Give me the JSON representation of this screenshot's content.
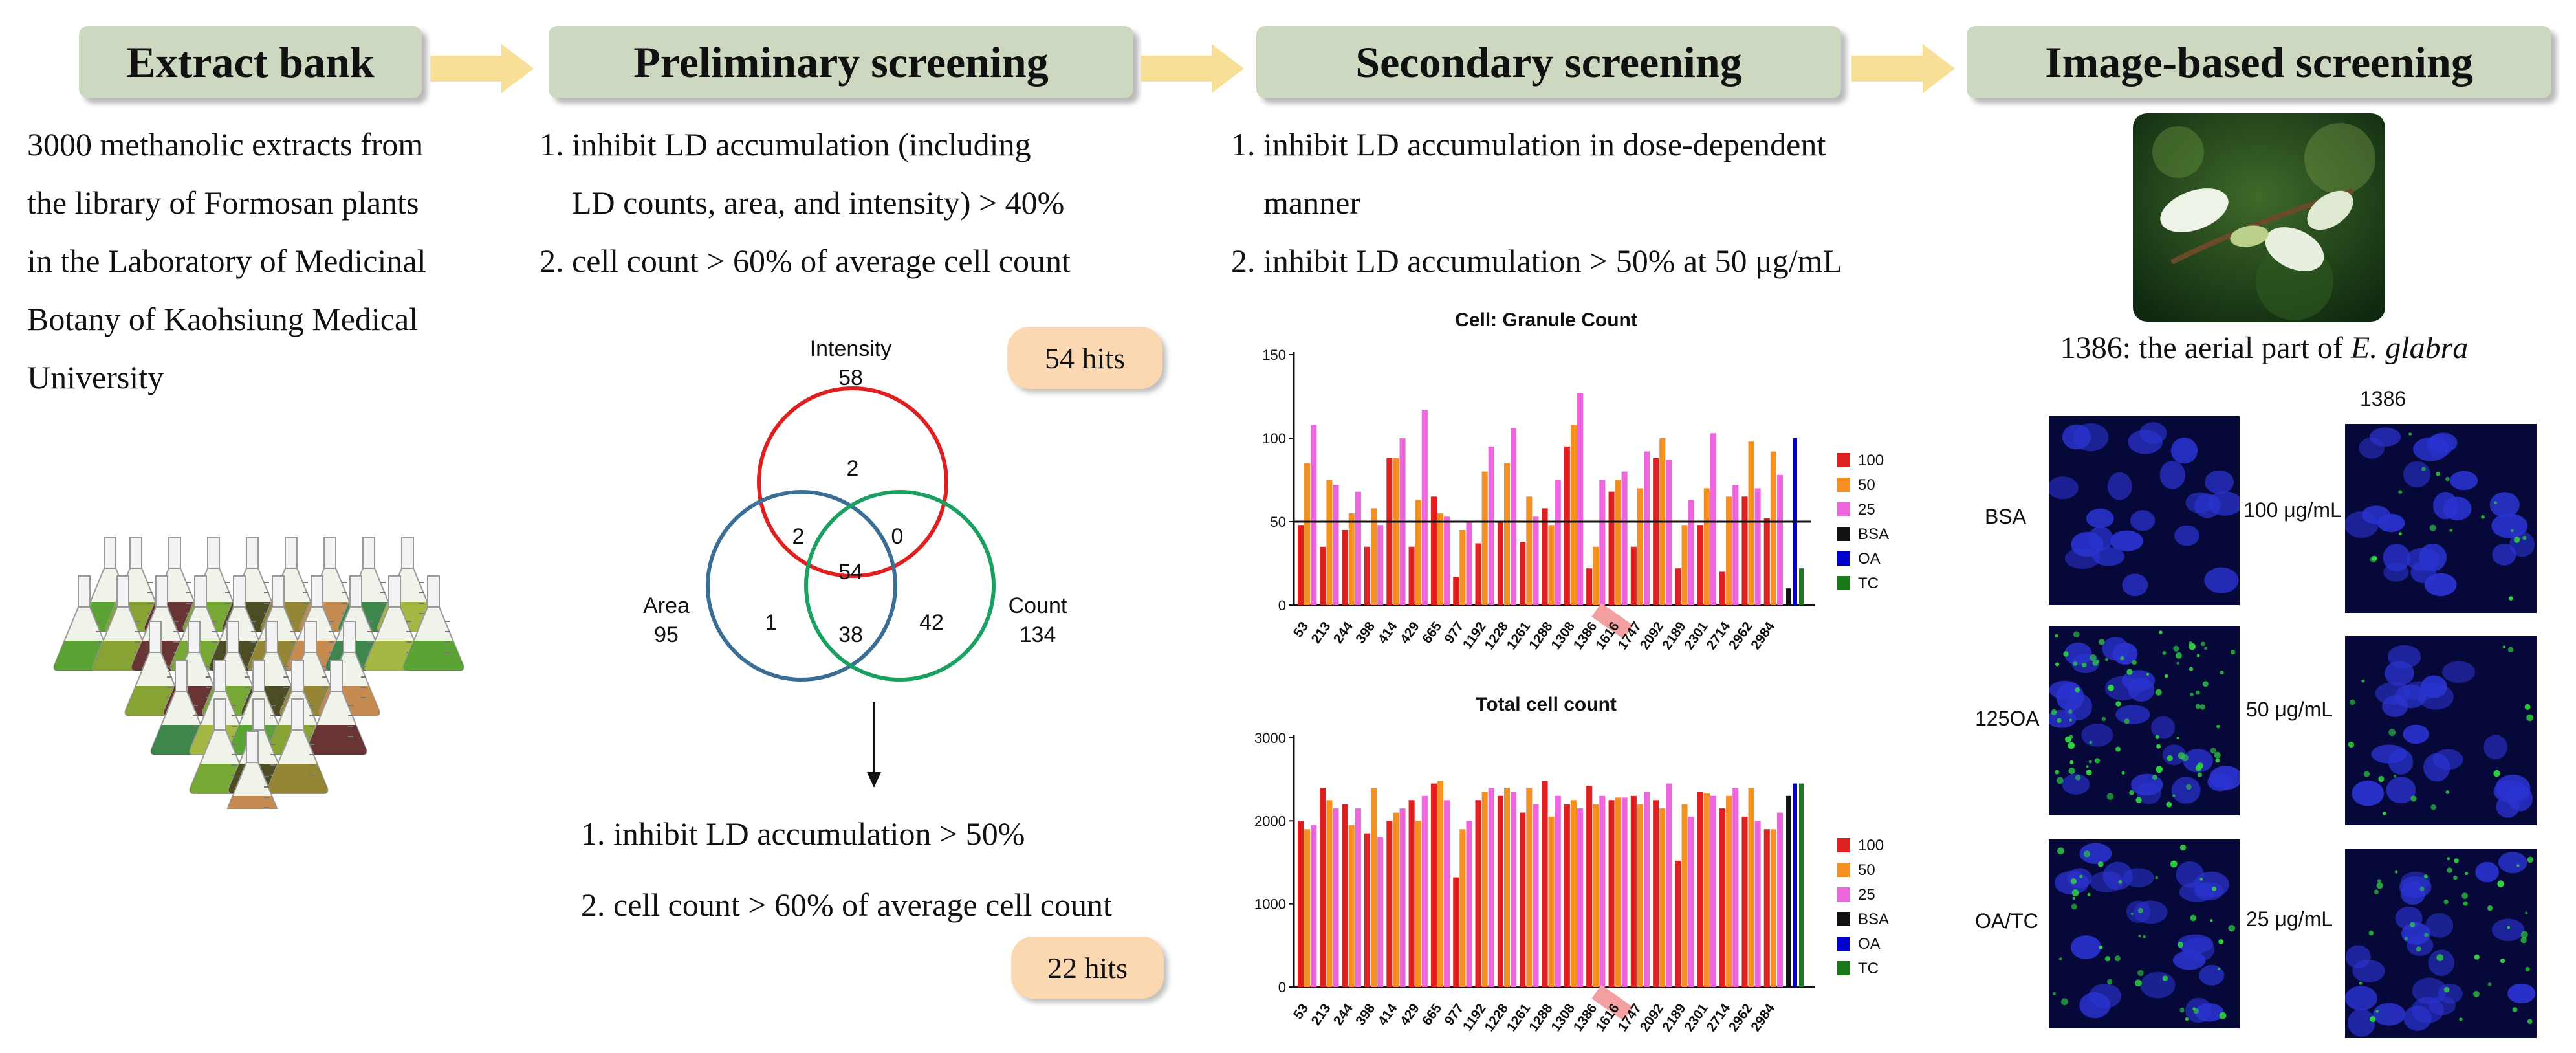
{
  "headers": {
    "extract_bank": "Extract bank",
    "preliminary": "Preliminary screening",
    "secondary": "Secondary screening",
    "image_based": "Image-based screening"
  },
  "colors": {
    "header_bg": "#ccd8c0",
    "arrow": "#f8df98",
    "pill_bg": "#fbd8b2",
    "red": "#e02020",
    "orange": "#f59020",
    "pink": "#ee66dd",
    "blue": "#0000cc",
    "green": "#1a7a1a"
  },
  "extract_bank": {
    "lines": [
      "3000 methanolic extracts from",
      "the library of Formosan plants",
      "in the Laboratory of Medicinal",
      "Botany of Kaohsiung Medical",
      "University"
    ],
    "flasks_icon": "erlenmeyer-flasks-pyramid-icon"
  },
  "preliminary": {
    "criteria1_line1": "1. inhibit  LD  accumulation  (including",
    "criteria1_line2": "LD counts, area, and intensity) > 40%",
    "criteria2": "2. cell count > 60% of average cell count",
    "hits1": "54 hits",
    "venn": {
      "intensity_label": "Intensity",
      "intensity_total": "58",
      "area_label": "Area",
      "area_total": "95",
      "count_label": "Count",
      "count_total": "134",
      "only_intensity": "2",
      "intensity_area": "2",
      "intensity_count": "0",
      "all_three": "54",
      "only_area": "1",
      "area_count": "38",
      "only_count": "42"
    },
    "criteria3": "1. inhibit LD accumulation > 50%",
    "criteria4": "2. cell count > 60% of average cell count",
    "hits2": "22 hits"
  },
  "secondary": {
    "criteria1_line1": "1. inhibit LD accumulation in dose-dependent",
    "criteria1_line2": "manner",
    "criteria2": "2. inhibit LD accumulation > 50% at 50 μg/mL"
  },
  "chart_data": [
    {
      "type": "bar",
      "title": "Cell: Granule Count",
      "categories": [
        "53",
        "213",
        "244",
        "398",
        "414",
        "429",
        "665",
        "977",
        "1192",
        "1228",
        "1261",
        "1288",
        "1308",
        "1386",
        "1616",
        "1747",
        "2092",
        "2189",
        "2301",
        "2714",
        "2962",
        "2984"
      ],
      "highlight_category": "1386",
      "series": [
        {
          "name": "100",
          "values": [
            48,
            35,
            45,
            35,
            88,
            35,
            65,
            17,
            37,
            50,
            38,
            58,
            95,
            22,
            68,
            35,
            88,
            22,
            48,
            20,
            65,
            52
          ]
        },
        {
          "name": "50",
          "values": [
            85,
            75,
            55,
            58,
            88,
            63,
            55,
            45,
            80,
            85,
            65,
            48,
            108,
            35,
            75,
            70,
            100,
            48,
            70,
            65,
            98,
            92
          ]
        },
        {
          "name": "25",
          "values": [
            108,
            72,
            68,
            48,
            100,
            117,
            53,
            50,
            95,
            106,
            53,
            75,
            127,
            75,
            80,
            92,
            87,
            63,
            103,
            72,
            70,
            78
          ]
        }
      ],
      "controls": [
        {
          "name": "BSA",
          "value": 10
        },
        {
          "name": "OA",
          "value": 100
        },
        {
          "name": "TC",
          "value": 22
        }
      ],
      "reference_line": 50,
      "ylim": [
        0,
        150
      ],
      "yticks": [
        "0",
        "50",
        "100",
        "150"
      ],
      "legend": [
        "100",
        "50",
        "25",
        "BSA",
        "OA",
        "TC"
      ]
    },
    {
      "type": "bar",
      "title": "Total cell count",
      "categories": [
        "53",
        "213",
        "244",
        "398",
        "414",
        "429",
        "665",
        "977",
        "1192",
        "1228",
        "1261",
        "1288",
        "1308",
        "1386",
        "1616",
        "1747",
        "2092",
        "2189",
        "2301",
        "2714",
        "2962",
        "2984"
      ],
      "highlight_category": "1386",
      "series": [
        {
          "name": "100",
          "values": [
            2000,
            2400,
            2200,
            1850,
            2000,
            2250,
            2450,
            1320,
            2250,
            2300,
            2100,
            2480,
            2200,
            2420,
            2250,
            2300,
            2250,
            1520,
            2350,
            2150,
            2050,
            1900
          ]
        },
        {
          "name": "50",
          "values": [
            1900,
            2250,
            1950,
            2400,
            2100,
            2000,
            2480,
            1900,
            2350,
            2400,
            2400,
            2050,
            2250,
            2200,
            2280,
            2200,
            2150,
            2200,
            2330,
            2300,
            2400,
            1900
          ]
        },
        {
          "name": "25",
          "values": [
            1950,
            2150,
            2150,
            1800,
            2150,
            2300,
            2250,
            2000,
            2400,
            2350,
            2200,
            2300,
            2150,
            2300,
            2280,
            2350,
            2450,
            2050,
            2300,
            2400,
            2000,
            2100
          ]
        }
      ],
      "controls": [
        {
          "name": "BSA",
          "value": 2300
        },
        {
          "name": "OA",
          "value": 2450
        },
        {
          "name": "TC",
          "value": 2450
        }
      ],
      "ylim": [
        0,
        3000
      ],
      "yticks": [
        "0",
        "1000",
        "2000",
        "3000"
      ],
      "legend": [
        "100",
        "50",
        "25",
        "BSA",
        "OA",
        "TC"
      ]
    }
  ],
  "image_based": {
    "caption_prefix": "1386: the aerial part of ",
    "caption_species": "E. glabra",
    "column_header": "1386",
    "rows": [
      {
        "label": "BSA",
        "dose": "100 μg/mL"
      },
      {
        "label": "125OA",
        "dose": "50 μg/mL"
      },
      {
        "label": "OA/TC",
        "dose": "25 μg/mL"
      }
    ]
  }
}
